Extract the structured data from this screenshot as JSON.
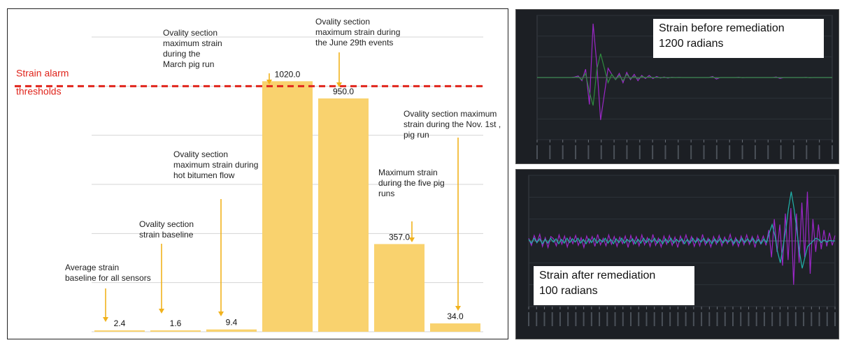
{
  "chart_data": [
    {
      "type": "bar",
      "title": "",
      "categories": [
        "Average strain baseline for all sensors",
        "Ovality section strain baseline",
        "Ovality section maximum strain during hot bitumen flow",
        "Ovality section maximum strain during the March pig run",
        "Ovality section maximum strain during the June 29th events",
        "Maximum strain during the five pig runs",
        "Ovality section maximum strain during the Nov. 1st, pig run"
      ],
      "values": [
        2.4,
        1.6,
        9.4,
        1020.0,
        950.0,
        357.0,
        34.0
      ],
      "value_labels": [
        "2.4",
        "1.6",
        "9.4",
        "1020.0",
        "950.0",
        "357.0",
        "34.0"
      ],
      "ylim": [
        0,
        1200
      ],
      "grid": true,
      "bar_color": "#f9d26e",
      "threshold": {
        "value": 1000,
        "label_line1": "Strain alarm",
        "label_line2": "thresholds",
        "color": "#e0241b"
      },
      "annotations": [
        {
          "lines": [
            "Average strain",
            "baseline for all sensors"
          ],
          "bar": 0
        },
        {
          "lines": [
            "Ovality section",
            "strain baseline"
          ],
          "bar": 1
        },
        {
          "lines": [
            "Ovality section",
            "maximum strain during",
            "hot bitumen flow"
          ],
          "bar": 2
        },
        {
          "lines": [
            "Ovality section",
            "maximum strain",
            "during the",
            "March pig run"
          ],
          "bar": 3
        },
        {
          "lines": [
            "Ovality section",
            "maximum strain during",
            "the June 29th events"
          ],
          "bar": 4
        },
        {
          "lines": [
            "Maximum strain",
            "during the five pig",
            "runs"
          ],
          "bar": 5
        },
        {
          "lines": [
            "Ovality section maximum",
            "strain during the Nov. 1st ,",
            "pig run"
          ],
          "bar": 6
        }
      ],
      "arrow_color": "#f1b21d"
    },
    {
      "type": "line",
      "title": "Strain before remediation 1200 radians",
      "ylim": [
        -6000,
        6000
      ],
      "series": [
        {
          "color": "#9b27c7",
          "values": [
            0,
            0,
            0,
            0,
            0,
            0,
            0,
            0,
            0,
            0,
            50,
            150,
            -300,
            800,
            -2600,
            5200,
            1200,
            -4100,
            -1600,
            900,
            300,
            -200,
            400,
            -500,
            500,
            -200,
            300,
            -300,
            200,
            -100,
            200,
            -100,
            100,
            -50,
            50,
            -50,
            30,
            0,
            20,
            0,
            0,
            0,
            0,
            0,
            0,
            0,
            0,
            100,
            -150,
            0,
            0,
            0,
            0,
            0,
            30,
            -20,
            0,
            0,
            0,
            0,
            0,
            0,
            0,
            0,
            50,
            -80,
            0,
            0,
            0,
            0,
            0,
            0,
            20,
            -20,
            0,
            0,
            0,
            0,
            0,
            0
          ]
        },
        {
          "color": "#2e8b3e",
          "values": [
            0,
            0,
            0,
            0,
            0,
            0,
            0,
            0,
            0,
            0,
            0,
            50,
            -200,
            400,
            -1400,
            -2700,
            800,
            2300,
            900,
            -500,
            300,
            -200,
            200,
            -300,
            300,
            -100,
            100,
            -100,
            100,
            0,
            50,
            0,
            0,
            0,
            0,
            0,
            0,
            0,
            0,
            0,
            0,
            0,
            0,
            0,
            0,
            0,
            0,
            50,
            -50,
            0,
            0,
            0,
            0,
            0,
            0,
            0,
            0,
            0,
            0,
            0,
            0,
            0,
            0,
            0,
            0,
            0,
            0,
            0,
            0,
            0,
            0,
            0,
            0,
            0,
            0,
            0,
            0,
            0,
            0,
            0
          ]
        }
      ]
    },
    {
      "type": "line",
      "title": "Strain after remediation 100 radians",
      "ylim": [
        -120,
        120
      ],
      "series": [
        {
          "color": "#9b27c7",
          "values": [
            5,
            -8,
            10,
            -3,
            12,
            -10,
            6,
            -12,
            8,
            4,
            -9,
            11,
            -6,
            9,
            -11,
            7,
            -5,
            10,
            -8,
            6,
            -12,
            9,
            -4,
            8,
            -10,
            12,
            -7,
            5,
            -9,
            11,
            -6,
            8,
            -10,
            7,
            -5,
            9,
            -12,
            10,
            -6,
            8,
            -9,
            11,
            -7,
            6,
            -10,
            12,
            -8,
            5,
            -11,
            9,
            -6,
            10,
            -8,
            7,
            -12,
            9,
            -5,
            11,
            -7,
            8,
            -10,
            6,
            -9,
            12,
            -7,
            5,
            -11,
            8,
            -6,
            10,
            -9,
            7,
            -5,
            12,
            -8,
            6,
            -10,
            9,
            -7,
            11,
            -6,
            8,
            -12,
            10,
            -5,
            9,
            -8,
            20,
            -30,
            40,
            -20,
            30,
            -45,
            50,
            -35,
            60,
            -80,
            50,
            -40,
            70,
            -30,
            90,
            -60,
            40,
            -20,
            30,
            -15,
            20,
            -10,
            15,
            -8,
            10
          ]
        },
        {
          "color": "#20b2aa",
          "values": [
            3,
            -4,
            5,
            -3,
            4,
            -5,
            3,
            -4,
            5,
            -2,
            4,
            -5,
            3,
            -4,
            5,
            -3,
            4,
            -2,
            5,
            -4,
            3,
            -5,
            4,
            -3,
            5,
            -4,
            3,
            -2,
            5,
            -4,
            3,
            -5,
            4,
            -3,
            5,
            -4,
            3,
            -2,
            4,
            -5,
            3,
            -4,
            5,
            -3,
            4,
            -2,
            5,
            -4,
            3,
            -5,
            4,
            -3,
            5,
            -4,
            3,
            -2,
            4,
            -5,
            3,
            -4,
            5,
            -3,
            4,
            -2,
            5,
            -4,
            3,
            -5,
            4,
            -3,
            5,
            -4,
            3,
            -2,
            4,
            -5,
            3,
            -4,
            5,
            -3,
            4,
            -2,
            5,
            -4,
            3,
            -5,
            4,
            -3,
            15,
            30,
            10,
            -20,
            -40,
            -10,
            20,
            60,
            90,
            60,
            20,
            -20,
            -50,
            -30,
            -10,
            -5,
            0,
            5,
            3,
            -3,
            2,
            -2,
            1,
            0,
            0
          ]
        }
      ]
    }
  ],
  "captions": {
    "before_line1": "Strain before remediation",
    "before_line2": "1200 radians",
    "after_line1": "Strain after remediation",
    "after_line2": "100 radians"
  }
}
